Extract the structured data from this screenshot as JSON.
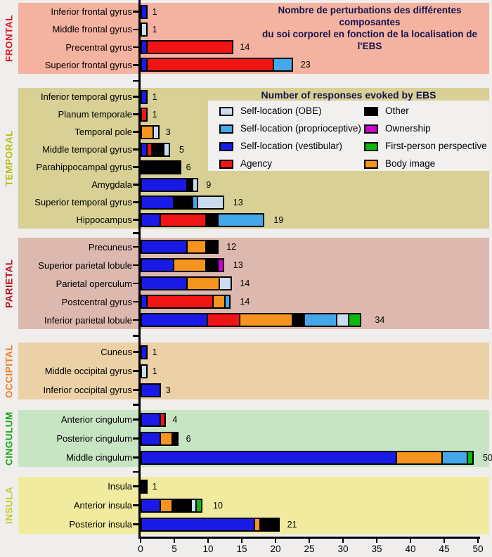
{
  "title": {
    "line1": "Nombre de perturbations des différentes composantes",
    "line2": "du soi corporel en fonction de la localisation de l'EBS"
  },
  "legend": {
    "title": "Number of responses evoked by EBS",
    "columns": [
      [
        {
          "key": "obe",
          "label": "Self-location (OBE)"
        },
        {
          "key": "proprioceptive",
          "label": "Self-location (proprioceptive)"
        },
        {
          "key": "vestibular",
          "label": "Self-location (vestibular)"
        },
        {
          "key": "agency",
          "label": "Agency"
        }
      ],
      [
        {
          "key": "other",
          "label": "Other"
        },
        {
          "key": "ownership",
          "label": "Ownership"
        },
        {
          "key": "first_person",
          "label": "First-person perspective"
        },
        {
          "key": "body_image",
          "label": "Body image"
        }
      ]
    ]
  },
  "colors": {
    "obe": "#ccdcf0",
    "proprioceptive": "#44a8e8",
    "vestibular": "#1a1ae6",
    "agency": "#f01414",
    "other": "#000000",
    "ownership": "#cc00cc",
    "first_person": "#0cb80c",
    "body_image": "#f5941e",
    "title_text": "#15154d"
  },
  "chart_data": {
    "type": "bar",
    "orientation": "horizontal",
    "stacked": true,
    "x_axis": {
      "min": 0,
      "max": 50,
      "tick_step": 5,
      "ticks": [
        0,
        5,
        10,
        15,
        20,
        25,
        30,
        35,
        40,
        45,
        50
      ]
    },
    "groups": [
      {
        "id": "frontal",
        "name": "FRONTAL",
        "label_color": "#e8191f",
        "band_color": "#f4b2a0",
        "rows": [
          {
            "label": "Inferior frontal gyrus",
            "total": 1,
            "segments": [
              {
                "key": "vestibular",
                "value": 1
              }
            ]
          },
          {
            "label": "Middle frontal gyrus",
            "total": 1,
            "segments": [
              {
                "key": "obe",
                "value": 1
              }
            ]
          },
          {
            "label": "Precentral gyrus",
            "total": 14,
            "segments": [
              {
                "key": "vestibular",
                "value": 1
              },
              {
                "key": "agency",
                "value": 13
              }
            ]
          },
          {
            "label": "Superior frontal gyrus",
            "total": 23,
            "segments": [
              {
                "key": "vestibular",
                "value": 1
              },
              {
                "key": "agency",
                "value": 19
              },
              {
                "key": "proprioceptive",
                "value": 3
              }
            ]
          }
        ]
      },
      {
        "id": "temporal",
        "name": "TEMPORAL",
        "label_color": "#b8bf17",
        "band_color": "#d8d095",
        "rows": [
          {
            "label": "Inferior temporal gyrus",
            "total": 1,
            "segments": [
              {
                "key": "vestibular",
                "value": 1
              }
            ]
          },
          {
            "label": "Planum temporale",
            "total": 1,
            "segments": [
              {
                "key": "agency",
                "value": 1
              }
            ]
          },
          {
            "label": "Temporal pole",
            "total": 3,
            "segments": [
              {
                "key": "body_image",
                "value": 2
              },
              {
                "key": "obe",
                "value": 1
              }
            ]
          },
          {
            "label": "Middle temporal gyrus",
            "total": 5,
            "segments": [
              {
                "key": "vestibular",
                "value": 1
              },
              {
                "key": "agency",
                "value": 1
              },
              {
                "key": "other",
                "value": 2
              },
              {
                "key": "obe",
                "value": 1
              }
            ]
          },
          {
            "label": "Parahippocampal gyrus",
            "total": 6,
            "segments": [
              {
                "key": "other",
                "value": 6
              }
            ]
          },
          {
            "label": "Amygdala",
            "total": 9,
            "segments": [
              {
                "key": "vestibular",
                "value": 7
              },
              {
                "key": "other",
                "value": 1
              },
              {
                "key": "obe",
                "value": 1
              }
            ]
          },
          {
            "label": "Superior temporal gyrus",
            "total": 13,
            "segments": [
              {
                "key": "vestibular",
                "value": 5
              },
              {
                "key": "other",
                "value": 3
              },
              {
                "key": "proprioceptive",
                "value": 1
              },
              {
                "key": "obe",
                "value": 4
              }
            ]
          },
          {
            "label": "Hippocampus",
            "total": 19,
            "segments": [
              {
                "key": "vestibular",
                "value": 3
              },
              {
                "key": "agency",
                "value": 7
              },
              {
                "key": "other",
                "value": 2
              },
              {
                "key": "proprioceptive",
                "value": 7
              }
            ]
          }
        ]
      },
      {
        "id": "parietal",
        "name": "PARIETAL",
        "label_color": "#b5121b",
        "band_color": "#dcb8ae",
        "rows": [
          {
            "label": "Precuneus",
            "total": 12,
            "segments": [
              {
                "key": "vestibular",
                "value": 7
              },
              {
                "key": "body_image",
                "value": 3
              },
              {
                "key": "other",
                "value": 2
              }
            ]
          },
          {
            "label": "Superior parietal lobule",
            "total": 13,
            "segments": [
              {
                "key": "vestibular",
                "value": 5
              },
              {
                "key": "body_image",
                "value": 5
              },
              {
                "key": "other",
                "value": 2
              },
              {
                "key": "ownership",
                "value": 1
              }
            ]
          },
          {
            "label": "Parietal operculum",
            "total": 14,
            "segments": [
              {
                "key": "vestibular",
                "value": 7
              },
              {
                "key": "body_image",
                "value": 5
              },
              {
                "key": "obe",
                "value": 2
              }
            ]
          },
          {
            "label": "Postcentral gyrus",
            "total": 14,
            "segments": [
              {
                "key": "vestibular",
                "value": 1
              },
              {
                "key": "agency",
                "value": 10
              },
              {
                "key": "body_image",
                "value": 2
              },
              {
                "key": "proprioceptive",
                "value": 1
              }
            ]
          },
          {
            "label": "Inferior parietal lobule",
            "total": 34,
            "segments": [
              {
                "key": "vestibular",
                "value": 10
              },
              {
                "key": "agency",
                "value": 5
              },
              {
                "key": "body_image",
                "value": 8
              },
              {
                "key": "other",
                "value": 2
              },
              {
                "key": "proprioceptive",
                "value": 5
              },
              {
                "key": "obe",
                "value": 2
              },
              {
                "key": "first_person",
                "value": 2
              }
            ]
          }
        ]
      },
      {
        "id": "occipital",
        "name": "OCCIPITAL",
        "label_color": "#f57e20",
        "band_color": "#ecd0a6",
        "rows": [
          {
            "label": "Cuneus",
            "total": 1,
            "segments": [
              {
                "key": "vestibular",
                "value": 1
              }
            ]
          },
          {
            "label": "Middle occipital gyrus",
            "total": 1,
            "segments": [
              {
                "key": "obe",
                "value": 1
              }
            ]
          },
          {
            "label": "Inferior occipital gyrus",
            "total": 3,
            "segments": [
              {
                "key": "vestibular",
                "value": 3
              }
            ]
          }
        ]
      },
      {
        "id": "cingulum",
        "name": "CINGULUM",
        "label_color": "#1aa71a",
        "band_color": "#c8e5c3",
        "rows": [
          {
            "label": "Anterior cingulum",
            "total": 4,
            "segments": [
              {
                "key": "vestibular",
                "value": 3
              },
              {
                "key": "agency",
                "value": 1
              }
            ]
          },
          {
            "label": "Posterior cingulum",
            "total": 6,
            "segments": [
              {
                "key": "vestibular",
                "value": 3
              },
              {
                "key": "body_image",
                "value": 2
              },
              {
                "key": "other",
                "value": 1
              }
            ]
          },
          {
            "label": "Middle cingulum",
            "total": 50,
            "segments": [
              {
                "key": "vestibular",
                "value": 38
              },
              {
                "key": "body_image",
                "value": 7
              },
              {
                "key": "proprioceptive",
                "value": 4
              },
              {
                "key": "first_person",
                "value": 1
              }
            ]
          }
        ]
      },
      {
        "id": "insula",
        "name": "INSULA",
        "label_color": "#c6cb2d",
        "band_color": "#f0eb9e",
        "rows": [
          {
            "label": "Insula",
            "total": 1,
            "segments": [
              {
                "key": "other",
                "value": 1
              }
            ]
          },
          {
            "label": "Anterior insula",
            "total": 10,
            "segments": [
              {
                "key": "vestibular",
                "value": 3
              },
              {
                "key": "body_image",
                "value": 2
              },
              {
                "key": "other",
                "value": 3
              },
              {
                "key": "obe",
                "value": 1
              },
              {
                "key": "first_person",
                "value": 1
              }
            ]
          },
          {
            "label": "Posterior insula",
            "total": 21,
            "segments": [
              {
                "key": "vestibular",
                "value": 17
              },
              {
                "key": "body_image",
                "value": 1
              },
              {
                "key": "other",
                "value": 3
              }
            ]
          }
        ]
      }
    ]
  }
}
